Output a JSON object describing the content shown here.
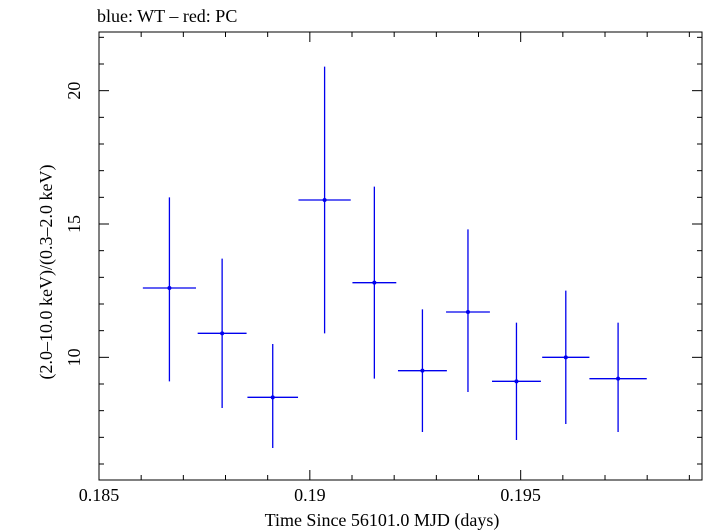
{
  "chart_data": {
    "type": "scatter",
    "title": "blue: WT – red: PC",
    "xlabel": "Time Since 56101.0 MJD (days)",
    "ylabel": "(2.0–10.0 keV)/(0.3–2.0 keV)",
    "xlim": [
      0.185,
      0.1993
    ],
    "ylim": [
      5.4,
      22.2
    ],
    "xticks": [
      0.185,
      0.19,
      0.195
    ],
    "xtick_labels": [
      "0.185",
      "0.19",
      "0.195"
    ],
    "yticks": [
      10,
      15,
      20
    ],
    "ytick_labels": [
      "10",
      "15",
      "20"
    ],
    "grid": false,
    "series": [
      {
        "name": "WT",
        "color": "#0000ee",
        "points": [
          {
            "x": 0.18667,
            "xerr": 0.00063,
            "y": 12.6,
            "ylo": 9.1,
            "yhi": 16.0
          },
          {
            "x": 0.18792,
            "xerr": 0.00058,
            "y": 10.9,
            "ylo": 8.1,
            "yhi": 13.7
          },
          {
            "x": 0.18912,
            "xerr": 0.0006,
            "y": 8.5,
            "ylo": 6.6,
            "yhi": 10.5
          },
          {
            "x": 0.19035,
            "xerr": 0.00062,
            "y": 15.9,
            "ylo": 10.9,
            "yhi": 20.9
          },
          {
            "x": 0.19153,
            "xerr": 0.00052,
            "y": 12.8,
            "ylo": 9.2,
            "yhi": 16.4
          },
          {
            "x": 0.19267,
            "xerr": 0.00058,
            "y": 9.5,
            "ylo": 7.2,
            "yhi": 11.8
          },
          {
            "x": 0.19375,
            "xerr": 0.00052,
            "y": 11.7,
            "ylo": 8.7,
            "yhi": 14.8
          },
          {
            "x": 0.1949,
            "xerr": 0.00058,
            "y": 9.1,
            "ylo": 6.9,
            "yhi": 11.3
          },
          {
            "x": 0.19607,
            "xerr": 0.00056,
            "y": 10.0,
            "ylo": 7.5,
            "yhi": 12.5
          },
          {
            "x": 0.19731,
            "xerr": 0.00068,
            "y": 9.2,
            "ylo": 7.2,
            "yhi": 11.3
          }
        ]
      }
    ]
  }
}
